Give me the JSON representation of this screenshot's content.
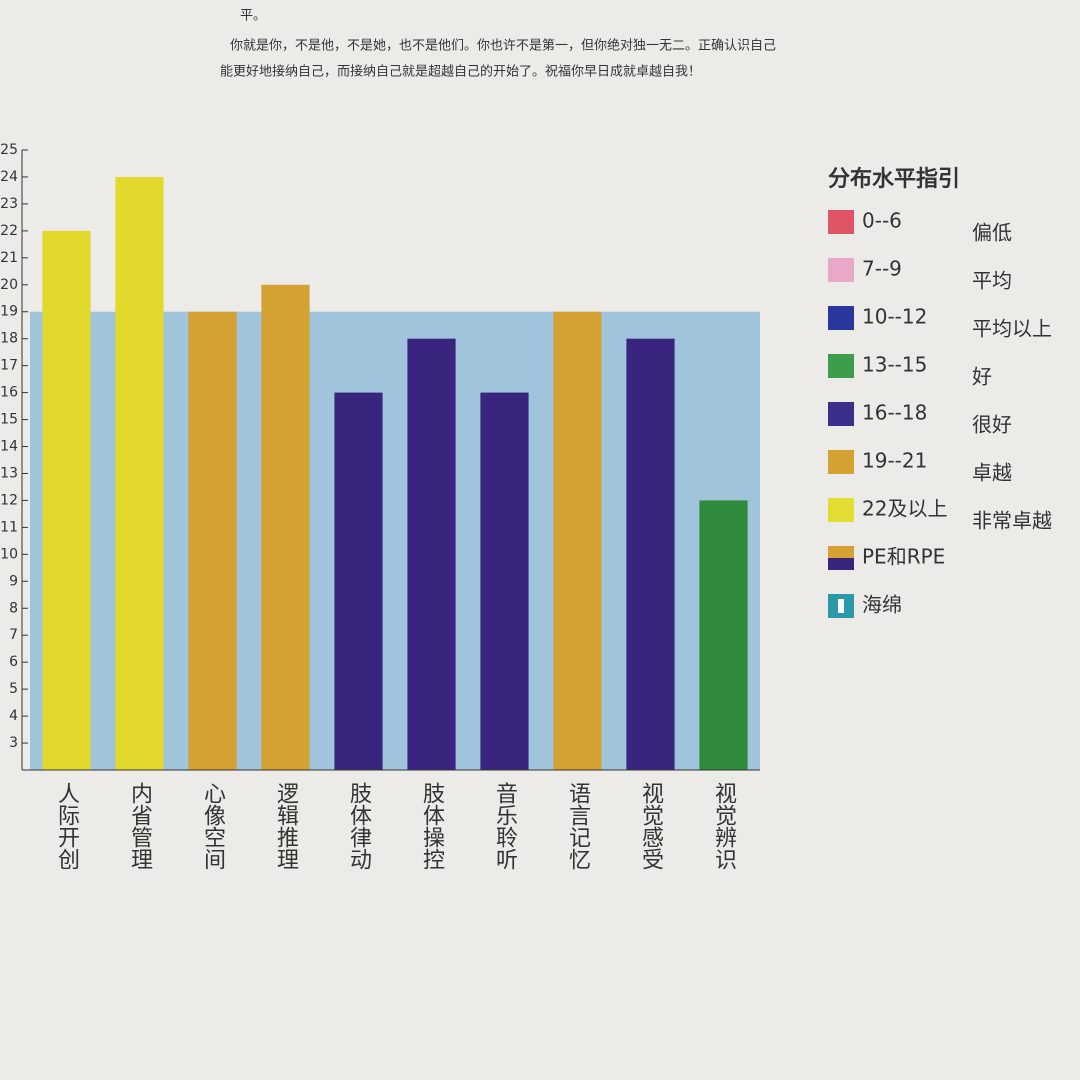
{
  "text_lines": [
    "平。",
    "你就是你，不是他，不是她，也不是他们。你也许不是第一，但你绝对独一无二。正确认识自己",
    "能更好地接纳自己，而接纳自己就是超越自己的开始了。祝福你早日成就卓越自我！"
  ],
  "chart_data": {
    "type": "bar",
    "categories": [
      "人际开创",
      "内省管理",
      "心像空间",
      "逻辑推理",
      "肢体律动",
      "肢体操控",
      "音乐聆听",
      "语言记忆",
      "视觉感受",
      "视觉辨识"
    ],
    "values": [
      22,
      24,
      19,
      20,
      16,
      18,
      16,
      19,
      18,
      12
    ],
    "colors": [
      "#e3d82c",
      "#e3d82c",
      "#d3a233",
      "#d3a233",
      "#39247e",
      "#39247e",
      "#39247e",
      "#d3a233",
      "#39247e",
      "#2f8a3c"
    ],
    "ylim": [
      2,
      25
    ],
    "yticks": [
      3,
      4,
      5,
      6,
      7,
      8,
      9,
      10,
      11,
      12,
      13,
      14,
      15,
      16,
      17,
      18,
      19,
      20,
      21,
      22,
      23,
      24,
      25
    ],
    "band_level": 19,
    "band_color": "#9fc4dc",
    "legend_title": "分布水平指引",
    "legend": [
      {
        "label": "0--6",
        "level": "偏低",
        "color": "#e05565"
      },
      {
        "label": "7--9",
        "level": "平均",
        "color": "#e8a9c9"
      },
      {
        "label": "10--12",
        "level": "平均以上",
        "color": "#2a379c"
      },
      {
        "label": "13--15",
        "level": "好",
        "color": "#3c9c4a"
      },
      {
        "label": "16--18",
        "level": "很好",
        "color": "#3b2f8c"
      },
      {
        "label": "19--21",
        "level": "卓越",
        "color": "#d3a233"
      },
      {
        "label": "22及以上",
        "level": "非常卓越",
        "color": "#e3dc32"
      },
      {
        "label": "PE和RPE",
        "color": "#d3a233",
        "color2": "#39247e"
      },
      {
        "label": "海绵",
        "color": "#2a99a8"
      }
    ]
  }
}
